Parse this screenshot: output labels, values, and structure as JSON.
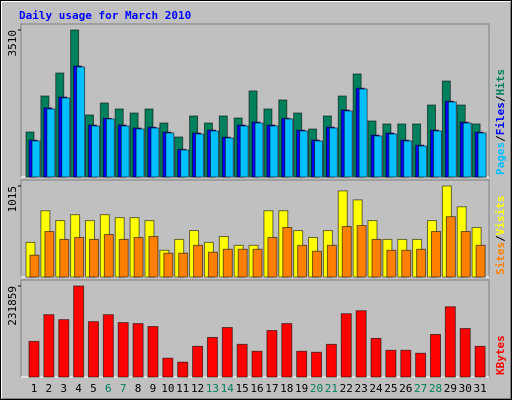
{
  "chart_data": [
    {
      "type": "bar",
      "title": "Daily usage for March 2010",
      "ylim": [
        0,
        3510
      ],
      "yticks": [
        3510
      ],
      "legend_separator": "/",
      "series": [
        {
          "name": "Pages",
          "color": "#00c0ff",
          "values": [
            861,
            1624,
            1887,
            2627,
            1218,
            1385,
            1218,
            1146,
            1170,
            1051,
            645,
            1027,
            1098,
            932,
            1218,
            1289,
            1218,
            1385,
            1098,
            861,
            1170,
            1576,
            2101,
            979,
            1027,
            861,
            740,
            1098,
            1791,
            1289,
            1051
          ]
        },
        {
          "name": "Files",
          "color": "#0000ff",
          "values": [
            880,
            1650,
            1910,
            2650,
            1240,
            1400,
            1240,
            1170,
            1190,
            1070,
            660,
            1050,
            1120,
            950,
            1240,
            1310,
            1240,
            1400,
            1120,
            880,
            1190,
            1600,
            2120,
            1000,
            1050,
            880,
            760,
            1120,
            1810,
            1310,
            1070
          ]
        },
        {
          "name": "Hits",
          "color": "#00805c",
          "values": [
            1074,
            1934,
            2483,
            3510,
            1481,
            1767,
            1624,
            1528,
            1624,
            1289,
            955,
            1457,
            1289,
            1457,
            1409,
            2054,
            1624,
            1839,
            1528,
            1146,
            1457,
            1934,
            2460,
            1337,
            1266,
            1266,
            1266,
            1719,
            2292,
            1719,
            1266
          ]
        }
      ]
    },
    {
      "type": "bar",
      "ylim": [
        0,
        1015
      ],
      "yticks": [
        1015
      ],
      "legend_separator": "/",
      "series": [
        {
          "name": "Sites",
          "color": "#ff8000",
          "values": [
            243,
            507,
            419,
            441,
            419,
            474,
            419,
            441,
            452,
            265,
            265,
            353,
            276,
            309,
            309,
            309,
            441,
            552,
            353,
            287,
            353,
            563,
            574,
            419,
            298,
            298,
            309,
            507,
            673,
            507,
            353
          ]
        },
        {
          "name": "Visits",
          "color": "#ffff00",
          "values": [
            386,
            739,
            629,
            695,
            629,
            695,
            662,
            662,
            629,
            298,
            419,
            518,
            386,
            452,
            353,
            353,
            739,
            739,
            518,
            441,
            518,
            960,
            860,
            629,
            419,
            419,
            419,
            629,
            1015,
            783,
            552
          ]
        }
      ]
    },
    {
      "type": "bar",
      "ylim": [
        0,
        231859
      ],
      "yticks": [
        231859
      ],
      "categories": [
        "1",
        "2",
        "3",
        "4",
        "5",
        "6",
        "7",
        "8",
        "9",
        "10",
        "11",
        "12",
        "13",
        "14",
        "15",
        "16",
        "17",
        "18",
        "19",
        "20",
        "21",
        "22",
        "23",
        "24",
        "25",
        "26",
        "27",
        "28",
        "29",
        "30",
        "31"
      ],
      "category_colors": [
        "#000000",
        "#000000",
        "#000000",
        "#000000",
        "#000000",
        "#00805c",
        "#00805c",
        "#000000",
        "#000000",
        "#000000",
        "#000000",
        "#000000",
        "#00805c",
        "#00805c",
        "#000000",
        "#000000",
        "#000000",
        "#000000",
        "#000000",
        "#00805c",
        "#00805c",
        "#000000",
        "#000000",
        "#000000",
        "#000000",
        "#000000",
        "#00805c",
        "#00805c",
        "#000000",
        "#000000",
        "#000000"
      ],
      "series": [
        {
          "name": "KBytes",
          "color": "#ff0000",
          "values": [
            90730,
            158780,
            146180,
            231859,
            141140,
            158780,
            138620,
            136100,
            128540,
            47890,
            37810,
            78130,
            100810,
            126020,
            83170,
            65530,
            118460,
            136100,
            65530,
            63010,
            83170,
            161300,
            168860,
            98290,
            68050,
            68050,
            60490,
            108370,
            178940,
            123500,
            78130
          ]
        }
      ]
    }
  ]
}
